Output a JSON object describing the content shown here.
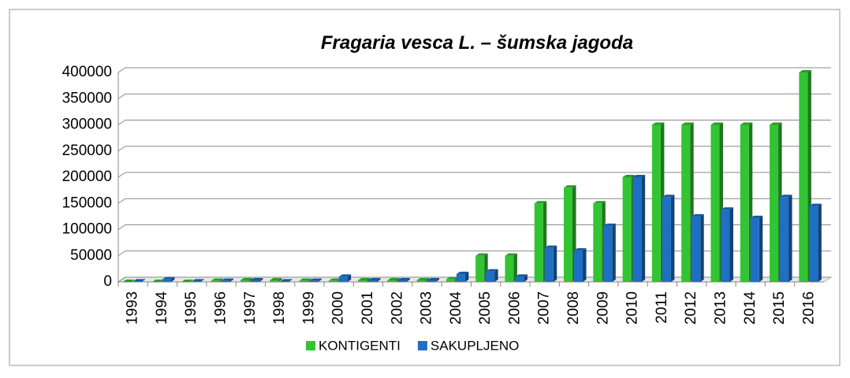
{
  "chart_data": {
    "type": "bar",
    "title": "Fragaria vesca L. – šumska jagoda",
    "categories": [
      "1993",
      "1994",
      "1995",
      "1996",
      "1997",
      "1998",
      "1999",
      "2000",
      "2001",
      "2002",
      "2003",
      "2004",
      "2005",
      "2006",
      "2007",
      "2008",
      "2009",
      "2010",
      "2011",
      "2012",
      "2013",
      "2014",
      "2015",
      "2016"
    ],
    "series": [
      {
        "name": "KONTIGENTI",
        "color": "#33c433",
        "values": [
          0,
          0,
          0,
          2000,
          3000,
          3000,
          2000,
          2000,
          3000,
          3000,
          3000,
          5000,
          50000,
          50000,
          150000,
          180000,
          150000,
          200000,
          300000,
          300000,
          300000,
          300000,
          300000,
          400000
        ]
      },
      {
        "name": "SAKUPLJENO",
        "color": "#1f6fc4",
        "values": [
          1000,
          5000,
          1000,
          2000,
          3000,
          1000,
          2000,
          10000,
          3000,
          3000,
          3000,
          15000,
          20000,
          10000,
          65000,
          60000,
          107000,
          200000,
          162000,
          125000,
          138000,
          122000,
          162000,
          145000
        ]
      }
    ],
    "ylim": [
      0,
      400000
    ],
    "yticks": [
      0,
      50000,
      100000,
      150000,
      200000,
      250000,
      300000,
      350000,
      400000
    ],
    "grid": true,
    "legend": "bottom"
  }
}
